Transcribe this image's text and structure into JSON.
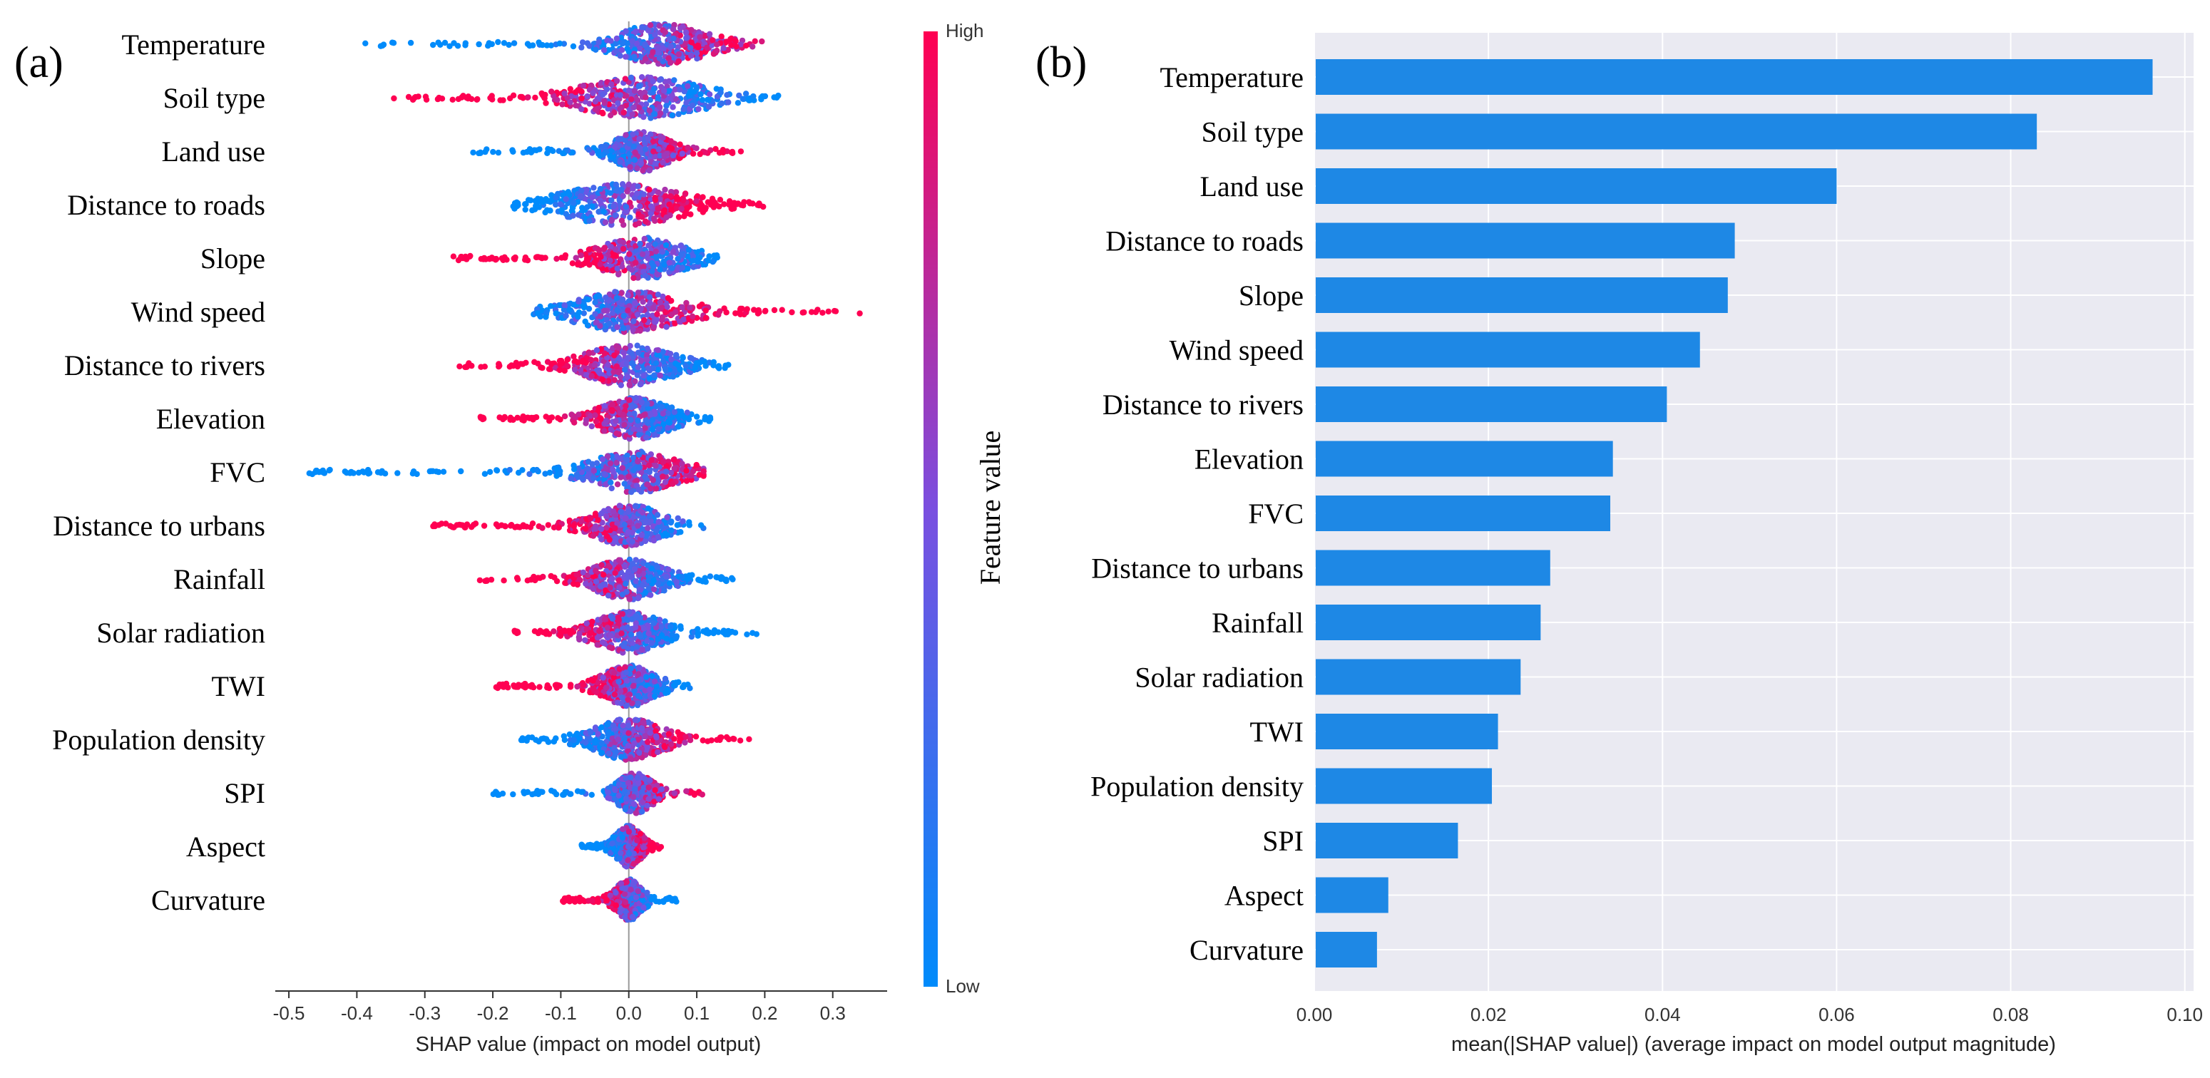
{
  "colors": {
    "low": "#008bfb",
    "high": "#ff0052",
    "bar": "#1e88e5",
    "panel_bg": "#eaeaf2",
    "grid": "#ffffff",
    "zero_line": "#999999"
  },
  "features": [
    "Temperature",
    "Soil type",
    "Land use",
    "Distance to roads",
    "Slope",
    "Wind speed",
    "Distance to rivers",
    "Elevation",
    "FVC",
    "Distance to urbans",
    "Rainfall",
    "Solar radiation",
    "TWI",
    "Population density",
    "SPI",
    "Aspect",
    "Curvature"
  ],
  "chart_data": [
    {
      "type": "scatter",
      "panel_label": "(a)",
      "title": "",
      "xlabel": "SHAP value (impact on model output)",
      "ylabel": "",
      "xlim": [
        -0.52,
        0.38
      ],
      "xticks": [
        -0.5,
        -0.4,
        -0.3,
        -0.2,
        -0.1,
        0,
        0.1,
        0.2,
        0.3
      ],
      "xtick_labels": [
        "-0.5",
        "-0.4",
        "-0.3",
        "-0.2",
        "-0.1",
        "0.0",
        "0.1",
        "0.2",
        "0.3"
      ],
      "grid": false,
      "colorbar": {
        "label": "Feature value",
        "high_label": "High",
        "low_label": "Low"
      },
      "series": [
        {
          "name": "Temperature",
          "min": -0.39,
          "max": 0.2,
          "center": 0.05,
          "spread": 0.05,
          "high_side": "right"
        },
        {
          "name": "Soil type",
          "min": -0.35,
          "max": 0.22,
          "center": 0.02,
          "spread": 0.07,
          "high_side": "left"
        },
        {
          "name": "Land use",
          "min": -0.23,
          "max": 0.17,
          "center": 0.02,
          "spread": 0.03,
          "high_side": "right"
        },
        {
          "name": "Distance to roads",
          "min": -0.17,
          "max": 0.2,
          "center": -0.01,
          "spread": 0.07,
          "high_side": "right"
        },
        {
          "name": "Slope",
          "min": -0.26,
          "max": 0.13,
          "center": 0.02,
          "spread": 0.05,
          "high_side": "left"
        },
        {
          "name": "Wind speed",
          "min": -0.14,
          "max": 0.34,
          "center": 0.0,
          "spread": 0.06,
          "high_side": "right"
        },
        {
          "name": "Distance to rivers",
          "min": -0.25,
          "max": 0.15,
          "center": 0.0,
          "spread": 0.05,
          "high_side": "left"
        },
        {
          "name": "Elevation",
          "min": -0.22,
          "max": 0.12,
          "center": 0.01,
          "spread": 0.04,
          "high_side": "left"
        },
        {
          "name": "FVC",
          "min": -0.48,
          "max": 0.11,
          "center": 0.01,
          "spread": 0.05,
          "high_side": "right"
        },
        {
          "name": "Distance to urbans",
          "min": -0.29,
          "max": 0.11,
          "center": 0.0,
          "spread": 0.04,
          "high_side": "left"
        },
        {
          "name": "Rainfall",
          "min": -0.22,
          "max": 0.16,
          "center": 0.0,
          "spread": 0.04,
          "high_side": "left"
        },
        {
          "name": "Solar radiation",
          "min": -0.17,
          "max": 0.19,
          "center": 0.0,
          "spread": 0.04,
          "high_side": "left"
        },
        {
          "name": "TWI",
          "min": -0.2,
          "max": 0.09,
          "center": 0.0,
          "spread": 0.03,
          "high_side": "left"
        },
        {
          "name": "Population density",
          "min": -0.16,
          "max": 0.18,
          "center": 0.0,
          "spread": 0.04,
          "high_side": "right"
        },
        {
          "name": "SPI",
          "min": -0.2,
          "max": 0.11,
          "center": 0.01,
          "spread": 0.02,
          "high_side": "right"
        },
        {
          "name": "Aspect",
          "min": -0.07,
          "max": 0.05,
          "center": 0.0,
          "spread": 0.015,
          "high_side": "right"
        },
        {
          "name": "Curvature",
          "min": -0.1,
          "max": 0.07,
          "center": 0.0,
          "spread": 0.015,
          "high_side": "left"
        }
      ]
    },
    {
      "type": "bar",
      "orientation": "horizontal",
      "panel_label": "(b)",
      "title": "",
      "xlabel": "mean(|SHAP value|) (average impact on model output magnitude)",
      "ylabel": "",
      "xlim": [
        0,
        0.1
      ],
      "xticks": [
        0,
        0.02,
        0.04,
        0.06,
        0.08,
        0.1
      ],
      "xtick_labels": [
        "0.00",
        "0.02",
        "0.04",
        "0.06",
        "0.08",
        "0.10"
      ],
      "grid": true,
      "categories": [
        "Temperature",
        "Soil type",
        "Land use",
        "Distance to roads",
        "Slope",
        "Wind speed",
        "Distance to rivers",
        "Elevation",
        "FVC",
        "Distance to urbans",
        "Rainfall",
        "Solar radiation",
        "TWI",
        "Population density",
        "SPI",
        "Aspect",
        "Curvature"
      ],
      "values": [
        0.0963,
        0.083,
        0.06,
        0.0483,
        0.0475,
        0.0443,
        0.0405,
        0.0343,
        0.034,
        0.0271,
        0.026,
        0.0237,
        0.0211,
        0.0204,
        0.0165,
        0.0085,
        0.0072
      ]
    }
  ]
}
